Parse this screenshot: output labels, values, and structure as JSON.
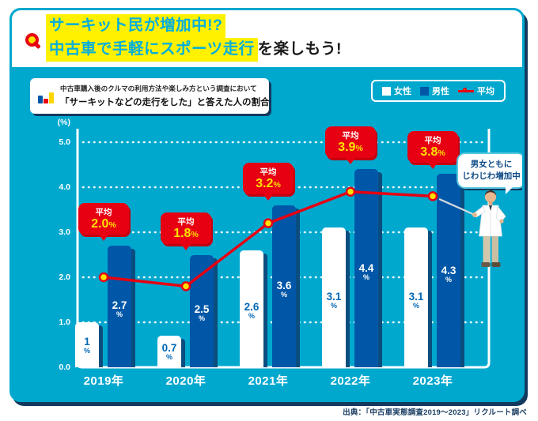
{
  "header": {
    "title_line1": "サーキット民が増加中!?",
    "title_line2_highlight": "中古車で手軽にスポーツ走行",
    "title_line2_rest": "を楽しもう!"
  },
  "subtitle": {
    "line1": "中古車購入後のクルマの利用方法や楽しみ方という調査において",
    "line2": "「サーキットなどの走行をした」と答えた人の割合"
  },
  "legend": {
    "female": "女性",
    "male": "男性",
    "average": "平均"
  },
  "bubble": {
    "line1": "男女ともに",
    "line2": "じわじわ増加中"
  },
  "source": "出典：「中古車実態調査2019～2023」リクルート調べ",
  "colors": {
    "cyan_bg": "#00A8CE",
    "navy_shadow": "#12395E",
    "male_bar": "#0057A8",
    "female_bar": "#FFFFFF",
    "bar_shadow": "#0B4D7E",
    "average_line": "#E60012",
    "callout_bg": "#E60012",
    "callout_value": "#FFE100",
    "title_highlight": "#FFF100",
    "title_text": "#00AEDD",
    "female_label_text": "#0068B7"
  },
  "chart_data": {
    "type": "bar",
    "title": "「サーキットなどの走行をした」と答えた人の割合",
    "unit_label": "(%)",
    "categories": [
      "2019年",
      "2020年",
      "2021年",
      "2022年",
      "2023年"
    ],
    "series": [
      {
        "name": "女性",
        "type": "bar",
        "color": "#FFFFFF",
        "values": [
          1,
          0.7,
          2.6,
          3.1,
          3.1
        ]
      },
      {
        "name": "男性",
        "type": "bar",
        "color": "#0057A8",
        "values": [
          2.7,
          2.5,
          3.6,
          4.4,
          4.3
        ]
      },
      {
        "name": "平均",
        "type": "line",
        "color": "#E60012",
        "values": [
          2.0,
          1.8,
          3.2,
          3.9,
          3.8
        ]
      }
    ],
    "callout_label": "平均",
    "ylim": [
      0,
      5
    ],
    "yticks": [
      "5.0",
      "4.0",
      "3.0",
      "2.0",
      "1.0",
      "0.0"
    ],
    "grid": "dotted-horizontal",
    "legend_position": "top-right",
    "annotation": "男女ともに じわじわ増加中"
  }
}
